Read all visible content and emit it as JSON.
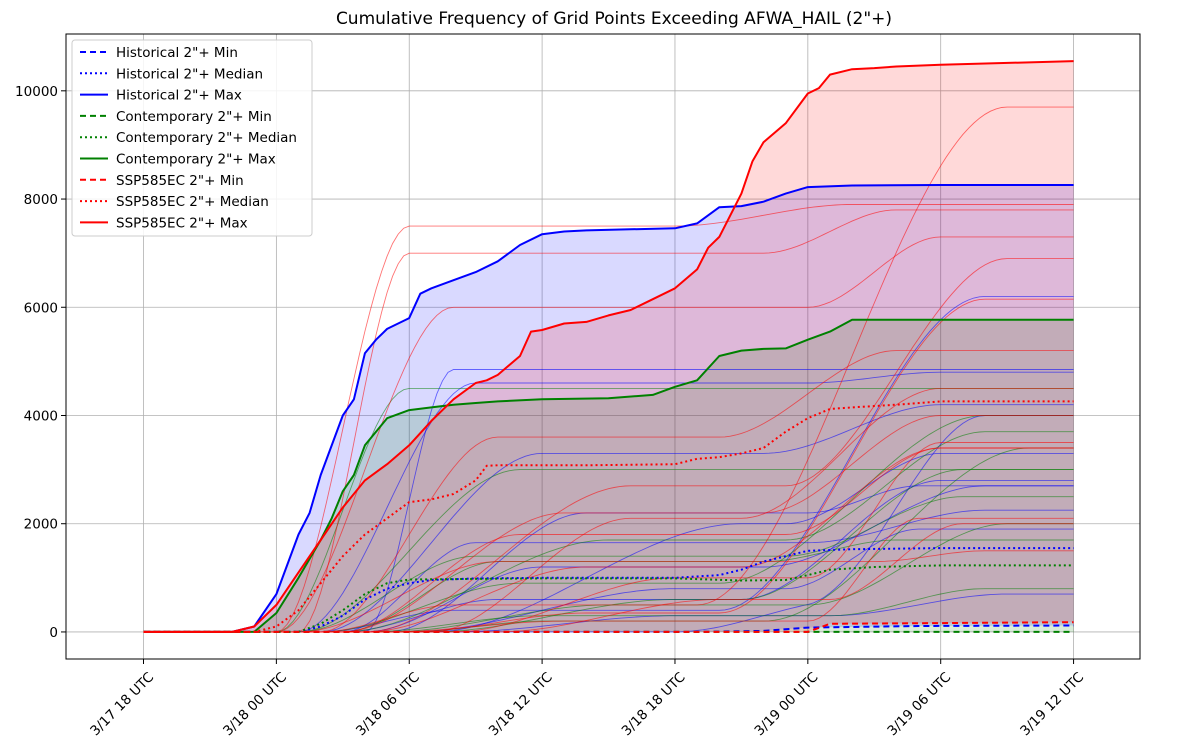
{
  "chart_data": {
    "type": "line",
    "title": "Cumulative Frequency of Grid Points Exceeding AFWA_HAIL (2\"+)",
    "xlabel": "",
    "ylabel": "",
    "x_unit": "hours since 3/17 18 UTC",
    "xlim": [
      -3.5,
      45
    ],
    "ylim": [
      -500,
      11050
    ],
    "grid": true,
    "legend_position": "top-left",
    "x_ticks": [
      {
        "value": 0,
        "label": "3/17 18 UTC"
      },
      {
        "value": 6,
        "label": "3/18 00 UTC"
      },
      {
        "value": 12,
        "label": "3/18 06 UTC"
      },
      {
        "value": 18,
        "label": "3/18 12 UTC"
      },
      {
        "value": 24,
        "label": "3/18 18 UTC"
      },
      {
        "value": 30,
        "label": "3/19 00 UTC"
      },
      {
        "value": 36,
        "label": "3/19 06 UTC"
      },
      {
        "value": 42,
        "label": "3/19 12 UTC"
      }
    ],
    "y_ticks": [
      {
        "value": 0,
        "label": "0"
      },
      {
        "value": 2000,
        "label": "2000"
      },
      {
        "value": 4000,
        "label": "4000"
      },
      {
        "value": 6000,
        "label": "6000"
      },
      {
        "value": 8000,
        "label": "8000"
      },
      {
        "value": 10000,
        "label": "10000"
      }
    ],
    "bands": [
      {
        "group": "Historical",
        "color": "#0000ff",
        "opacity": 0.15
      },
      {
        "group": "Contemporary",
        "color": "#008000",
        "opacity": 0.15
      },
      {
        "group": "SSP585EC",
        "color": "#ff0000",
        "opacity": 0.15
      }
    ],
    "series": [
      {
        "name": "Historical 2\"+ Min",
        "group": "Historical",
        "stat": "min",
        "color": "#0000ff",
        "style": "dashed",
        "x": [
          0,
          25,
          28,
          30,
          35,
          42
        ],
        "y": [
          0,
          0,
          20,
          80,
          110,
          120
        ]
      },
      {
        "name": "Historical 2\"+ Median",
        "group": "Historical",
        "stat": "median",
        "color": "#0000ff",
        "style": "dotted",
        "x": [
          0,
          7,
          8,
          9,
          10,
          11,
          12,
          13,
          15,
          18,
          21,
          24,
          26,
          27,
          28,
          29,
          30,
          32,
          36,
          42
        ],
        "y": [
          0,
          0,
          100,
          300,
          600,
          800,
          900,
          960,
          990,
          1000,
          1000,
          1000,
          1050,
          1150,
          1300,
          1400,
          1500,
          1530,
          1550,
          1550
        ]
      },
      {
        "name": "Historical 2\"+ Max",
        "group": "Historical",
        "stat": "max",
        "color": "#0000ff",
        "style": "solid",
        "x": [
          0,
          4,
          5,
          6,
          7,
          7.5,
          8,
          9,
          9.5,
          10,
          10.5,
          11,
          12,
          12.5,
          13,
          14,
          15,
          16,
          17,
          18,
          19,
          20,
          22,
          24,
          25,
          26,
          27,
          28,
          29,
          30,
          32,
          36,
          42
        ],
        "y": [
          0,
          0,
          100,
          700,
          1800,
          2200,
          2900,
          4000,
          4300,
          5150,
          5400,
          5600,
          5800,
          6250,
          6350,
          6500,
          6650,
          6850,
          7150,
          7350,
          7400,
          7420,
          7440,
          7460,
          7550,
          7850,
          7870,
          7950,
          8100,
          8220,
          8250,
          8260,
          8260
        ]
      },
      {
        "name": "Contemporary 2\"+ Min",
        "group": "Contemporary",
        "stat": "min",
        "color": "#008000",
        "style": "dashed",
        "x": [
          0,
          42
        ],
        "y": [
          0,
          0
        ]
      },
      {
        "name": "Contemporary 2\"+ Median",
        "group": "Contemporary",
        "stat": "median",
        "color": "#008000",
        "style": "dotted",
        "x": [
          0,
          7,
          8,
          9,
          10,
          11,
          12,
          15,
          18,
          24,
          27,
          29,
          30,
          31,
          33,
          36,
          42
        ],
        "y": [
          0,
          0,
          150,
          400,
          700,
          900,
          970,
          980,
          990,
          990,
          950,
          960,
          1050,
          1150,
          1200,
          1230,
          1230
        ]
      },
      {
        "name": "Contemporary 2\"+ Max",
        "group": "Contemporary",
        "stat": "max",
        "color": "#008000",
        "style": "solid",
        "x": [
          0,
          5,
          6,
          7,
          8,
          8.5,
          9,
          9.5,
          10,
          11,
          12,
          13,
          14,
          15,
          16,
          18,
          21,
          23,
          24,
          25,
          26,
          27,
          28,
          29,
          30,
          31,
          32,
          36,
          42
        ],
        "y": [
          0,
          0,
          350,
          1000,
          1700,
          2100,
          2600,
          2900,
          3450,
          3950,
          4100,
          4150,
          4200,
          4230,
          4260,
          4300,
          4320,
          4380,
          4530,
          4650,
          5100,
          5200,
          5230,
          5240,
          5400,
          5550,
          5770,
          5770,
          5770
        ]
      },
      {
        "name": "SSP585EC 2\"+ Min",
        "group": "SSP585EC",
        "stat": "min",
        "color": "#ff0000",
        "style": "dashed",
        "x": [
          0,
          30,
          31,
          42
        ],
        "y": [
          0,
          0,
          150,
          180
        ]
      },
      {
        "name": "SSP585EC 2\"+ Median",
        "group": "SSP585EC",
        "stat": "median",
        "color": "#ff0000",
        "style": "dotted",
        "x": [
          0,
          5,
          6,
          7,
          8,
          9,
          10,
          11,
          12,
          13,
          14,
          15,
          15.5,
          16,
          18,
          20,
          24,
          25,
          26,
          27,
          28,
          29,
          30,
          31,
          32,
          34,
          36,
          42
        ],
        "y": [
          0,
          0,
          100,
          400,
          900,
          1400,
          1800,
          2100,
          2400,
          2450,
          2550,
          2800,
          3070,
          3080,
          3080,
          3080,
          3100,
          3200,
          3230,
          3300,
          3400,
          3700,
          3950,
          4120,
          4150,
          4200,
          4260,
          4260
        ]
      },
      {
        "name": "SSP585EC 2\"+ Max",
        "group": "SSP585EC",
        "stat": "max",
        "color": "#ff0000",
        "style": "solid",
        "x": [
          0,
          4,
          5,
          6,
          7,
          8,
          9,
          10,
          11,
          12,
          13,
          14,
          15,
          15.5,
          16,
          17,
          17.5,
          18,
          19,
          20,
          21,
          22,
          23,
          24,
          25,
          25.5,
          26,
          27,
          27.5,
          28,
          29,
          30,
          30.5,
          31,
          32,
          33,
          34,
          36,
          42
        ],
        "y": [
          0,
          0,
          100,
          500,
          1100,
          1700,
          2300,
          2800,
          3100,
          3450,
          3900,
          4300,
          4600,
          4650,
          4750,
          5100,
          5550,
          5580,
          5700,
          5730,
          5850,
          5950,
          6150,
          6350,
          6700,
          7100,
          7300,
          8100,
          8700,
          9050,
          9400,
          9950,
          10050,
          10300,
          10400,
          10420,
          10450,
          10480,
          10550
        ]
      }
    ],
    "members": [
      {
        "group": "Historical",
        "onset": 7,
        "rise": 8,
        "plateau": 4600,
        "late_onset": 30,
        "late_rise": 6,
        "late_gain": 200
      },
      {
        "group": "Historical",
        "onset": 8,
        "rise": 10,
        "plateau": 3300,
        "late_onset": 28,
        "late_rise": 8,
        "late_gain": 900
      },
      {
        "group": "Historical",
        "onset": 9,
        "rise": 6,
        "plateau": 1650,
        "late_onset": 30,
        "late_rise": 8,
        "late_gain": 600
      },
      {
        "group": "Historical",
        "onset": 10,
        "rise": 8,
        "plateau": 1200,
        "late_onset": 28,
        "late_rise": 10,
        "late_gain": 1500
      },
      {
        "group": "Historical",
        "onset": 9,
        "rise": 7,
        "plateau": 600,
        "late_onset": 27,
        "late_rise": 9,
        "late_gain": 2200
      },
      {
        "group": "Historical",
        "onset": 8,
        "rise": 6,
        "plateau": 400,
        "late_onset": 26,
        "late_rise": 12,
        "late_gain": 5800
      },
      {
        "group": "Historical",
        "onset": 12,
        "rise": 12,
        "plateau": 800,
        "late_onset": 29,
        "late_rise": 6,
        "late_gain": 1100
      },
      {
        "group": "Historical",
        "onset": 14,
        "rise": 10,
        "plateau": 300,
        "late_onset": 31,
        "late_rise": 8,
        "late_gain": 400
      },
      {
        "group": "Historical",
        "onset": 10,
        "rise": 4,
        "plateau": 4850,
        "late_onset": 36,
        "late_rise": 4,
        "late_gain": 0
      },
      {
        "group": "Historical",
        "onset": 11,
        "rise": 9,
        "plateau": 2200,
        "late_onset": 30,
        "late_rise": 5,
        "late_gain": 500
      },
      {
        "group": "Historical",
        "onset": 13,
        "rise": 14,
        "plateau": 2000,
        "late_onset": 29,
        "late_rise": 7,
        "late_gain": 1300
      },
      {
        "group": "Historical",
        "onset": 24,
        "rise": 8,
        "plateau": 600,
        "late_onset": 30,
        "late_rise": 8,
        "late_gain": 3400
      },
      {
        "group": "Contemporary",
        "onset": 6,
        "rise": 6,
        "plateau": 4500,
        "late_onset": 33,
        "late_rise": 6,
        "late_gain": 0
      },
      {
        "group": "Contemporary",
        "onset": 7,
        "rise": 8,
        "plateau": 1400,
        "late_onset": 29,
        "late_rise": 8,
        "late_gain": 1100
      },
      {
        "group": "Contemporary",
        "onset": 8,
        "rise": 9,
        "plateau": 900,
        "late_onset": 26,
        "late_rise": 12,
        "late_gain": 3100
      },
      {
        "group": "Contemporary",
        "onset": 9,
        "rise": 7,
        "plateau": 1300,
        "late_onset": 28,
        "late_rise": 6,
        "late_gain": 400
      },
      {
        "group": "Contemporary",
        "onset": 11,
        "rise": 10,
        "plateau": 500,
        "late_onset": 30,
        "late_rise": 9,
        "late_gain": 1500
      },
      {
        "group": "Contemporary",
        "onset": 10,
        "rise": 8,
        "plateau": 300,
        "late_onset": 31,
        "late_rise": 7,
        "late_gain": 500
      },
      {
        "group": "Contemporary",
        "onset": 13,
        "rise": 11,
        "plateau": 600,
        "late_onset": 27,
        "late_rise": 10,
        "late_gain": 2400
      },
      {
        "group": "Contemporary",
        "onset": 9,
        "rise": 12,
        "plateau": 1700,
        "late_onset": 29,
        "late_rise": 9,
        "late_gain": 2000
      },
      {
        "group": "Contemporary",
        "onset": 12,
        "rise": 6,
        "plateau": 200,
        "late_onset": 28,
        "late_rise": 12,
        "late_gain": 3200
      },
      {
        "group": "Contemporary",
        "onset": 7,
        "rise": 10,
        "plateau": 3000,
        "late_onset": 34,
        "late_rise": 5,
        "late_gain": 0
      },
      {
        "group": "SSP585EC",
        "onset": 6,
        "rise": 6,
        "plateau": 7500,
        "late_onset": 24,
        "late_rise": 8,
        "late_gain": 400
      },
      {
        "group": "SSP585EC",
        "onset": 7,
        "rise": 5,
        "plateau": 7000,
        "late_onset": 28,
        "late_rise": 6,
        "late_gain": 800
      },
      {
        "group": "SSP585EC",
        "onset": 6,
        "rise": 8,
        "plateau": 6000,
        "late_onset": 30,
        "late_rise": 6,
        "late_gain": 1300
      },
      {
        "group": "SSP585EC",
        "onset": 8,
        "rise": 8,
        "plateau": 3600,
        "late_onset": 26,
        "late_rise": 8,
        "late_gain": 1600
      },
      {
        "group": "SSP585EC",
        "onset": 9,
        "rise": 10,
        "plateau": 2200,
        "late_onset": 28,
        "late_rise": 8,
        "late_gain": 1800
      },
      {
        "group": "SSP585EC",
        "onset": 10,
        "rise": 10,
        "plateau": 1200,
        "late_onset": 27,
        "late_rise": 9,
        "late_gain": 2200
      },
      {
        "group": "SSP585EC",
        "onset": 8,
        "rise": 6,
        "plateau": 500,
        "late_onset": 25,
        "late_rise": 14,
        "late_gain": 9200
      },
      {
        "group": "SSP585EC",
        "onset": 12,
        "rise": 8,
        "plateau": 350,
        "late_onset": 26,
        "late_rise": 12,
        "late_gain": 5800
      },
      {
        "group": "SSP585EC",
        "onset": 14,
        "rise": 10,
        "plateau": 1000,
        "late_onset": 30,
        "late_rise": 6,
        "late_gain": 2500
      },
      {
        "group": "SSP585EC",
        "onset": 9,
        "rise": 8,
        "plateau": 1800,
        "late_onset": 29,
        "late_rise": 7,
        "late_gain": 1600
      },
      {
        "group": "SSP585EC",
        "onset": 16,
        "rise": 10,
        "plateau": 600,
        "late_onset": 31,
        "late_rise": 6,
        "late_gain": 1400
      },
      {
        "group": "SSP585EC",
        "onset": 10,
        "rise": 12,
        "plateau": 2700,
        "late_onset": 29,
        "late_rise": 10,
        "late_gain": 4200
      },
      {
        "group": "SSP585EC",
        "onset": 11,
        "rise": 8,
        "plateau": 200,
        "late_onset": 30,
        "late_rise": 5,
        "late_gain": 1900
      },
      {
        "group": "SSP585EC",
        "onset": 13,
        "rise": 9,
        "plateau": 2100,
        "late_onset": 27,
        "late_rise": 9,
        "late_gain": 2400
      },
      {
        "group": "SSP585EC",
        "onset": 7,
        "rise": 9,
        "plateau": 1300,
        "late_onset": 33,
        "late_rise": 5,
        "late_gain": 200
      }
    ]
  }
}
